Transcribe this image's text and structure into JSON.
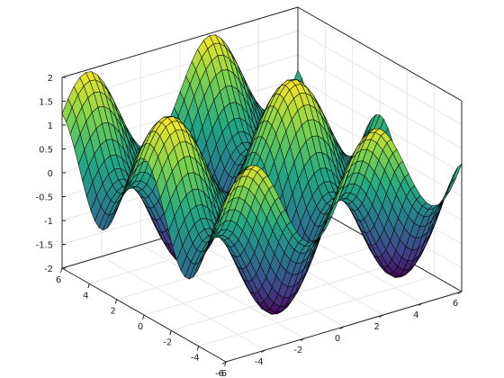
{
  "chart_data": {
    "type": "surface",
    "function": "z = sin(x) + cos(y)",
    "x_domain": [
      -6,
      6
    ],
    "y_domain": [
      -6,
      6
    ],
    "zlim": [
      -2,
      2
    ],
    "grid_points": 41,
    "x_ticks": [
      "-6",
      "-4",
      "-2",
      "0",
      "2",
      "4",
      "6"
    ],
    "y_ticks": [
      "-6",
      "-4",
      "-2",
      "0",
      "2",
      "4",
      "6"
    ],
    "z_ticks": [
      "-2",
      "-1.5",
      "-1",
      "-0.5",
      "0",
      "0.5",
      "1",
      "1.5",
      "2"
    ],
    "colormap": [
      "#440154",
      "#414487",
      "#2a788e",
      "#22a884",
      "#7ad151",
      "#fde725"
    ],
    "edge_color": "#000000",
    "axis_grid_color": "#e6e6e6",
    "title": "",
    "xlabel": "",
    "ylabel": "",
    "zlabel": "",
    "grid": true
  }
}
